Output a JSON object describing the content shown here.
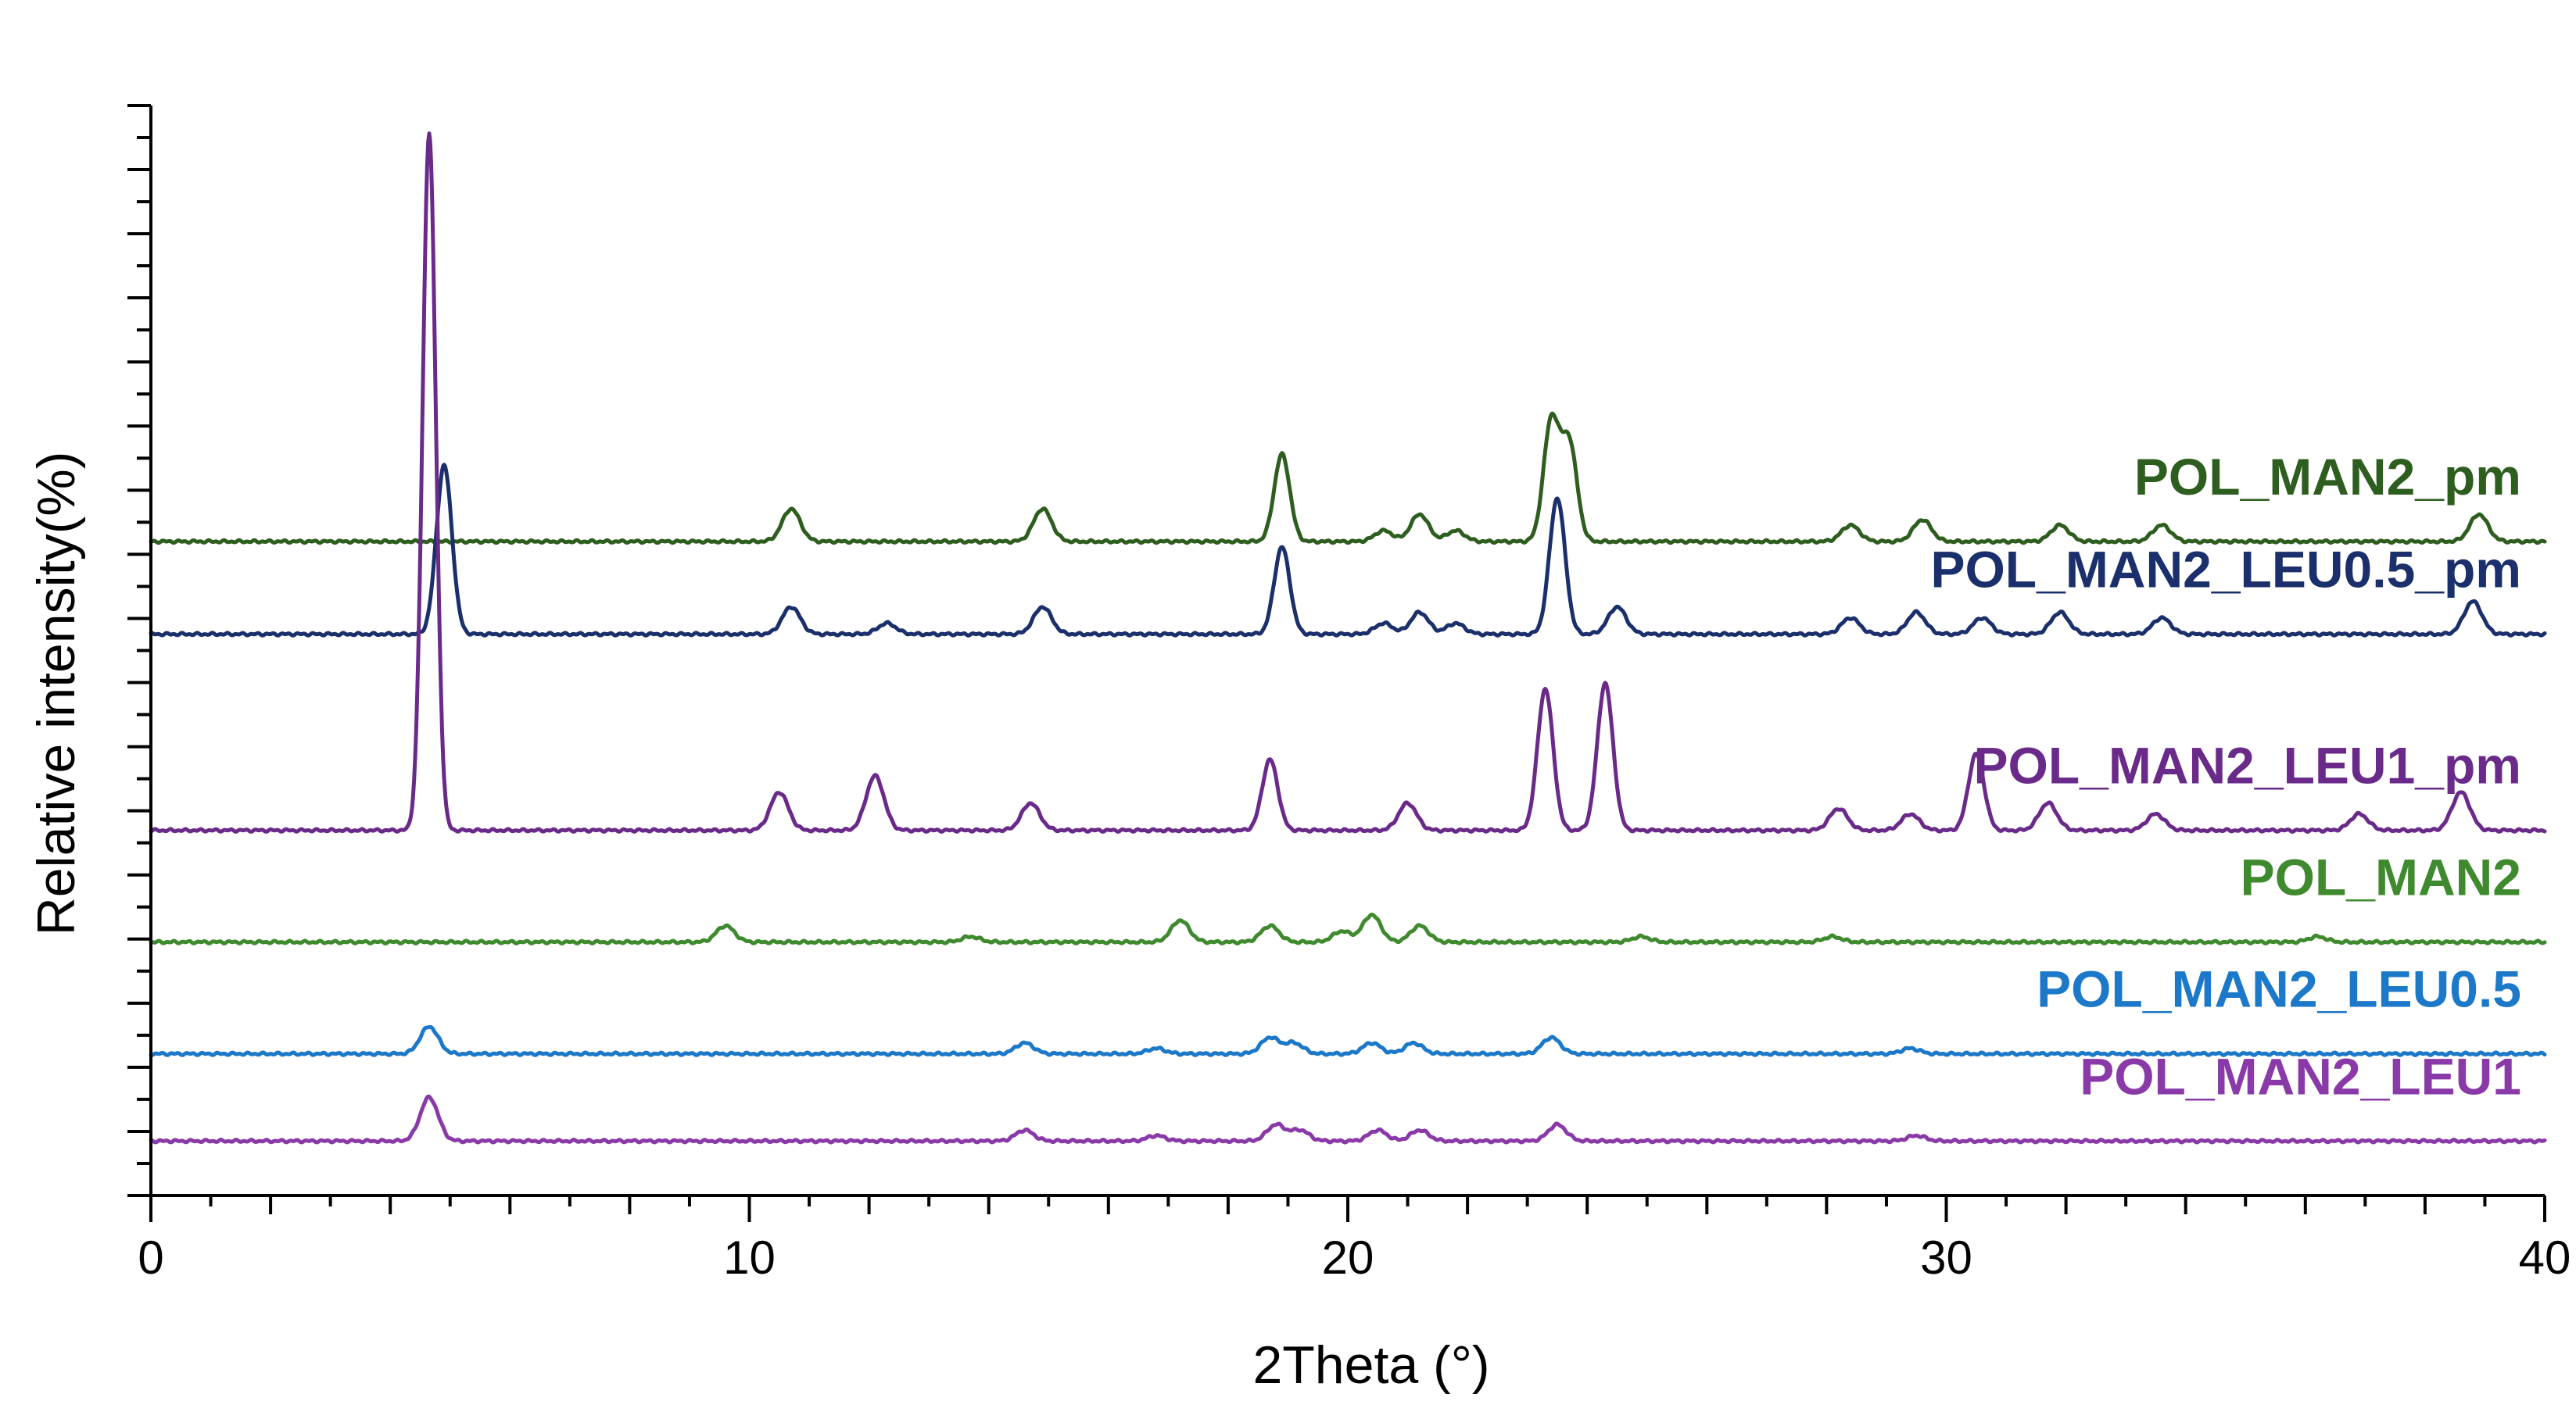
{
  "chart_data": {
    "type": "line",
    "title": "",
    "xlabel": "2Theta (°)",
    "ylabel": "Relative intensity(%)",
    "xlim": [
      0,
      40
    ],
    "x_ticks": [
      0,
      10,
      20,
      30,
      40
    ],
    "x_tick_labels": [
      "0",
      "10",
      "20",
      "30",
      "40"
    ],
    "grid": false,
    "legend": "inline labels on right",
    "series": [
      {
        "name": "POL_MAN2_pm",
        "color": "#2e5e1f",
        "offset": 90,
        "peaks": [
          [
            10.7,
            6
          ],
          [
            14.9,
            6
          ],
          [
            18.9,
            16
          ],
          [
            20.6,
            2
          ],
          [
            21.2,
            5
          ],
          [
            21.8,
            2
          ],
          [
            23.4,
            22
          ],
          [
            23.7,
            18
          ],
          [
            28.4,
            3
          ],
          [
            29.6,
            4
          ],
          [
            31.9,
            3
          ],
          [
            33.6,
            3
          ],
          [
            38.9,
            5
          ]
        ]
      },
      {
        "name": "POL_MAN2_LEU0.5_pm",
        "color": "#1a2f6b",
        "offset": 73,
        "peaks": [
          [
            4.9,
            31
          ],
          [
            10.7,
            5
          ],
          [
            12.3,
            2
          ],
          [
            14.9,
            5
          ],
          [
            18.9,
            16
          ],
          [
            20.6,
            2
          ],
          [
            21.2,
            4
          ],
          [
            21.8,
            2
          ],
          [
            23.5,
            25
          ],
          [
            24.5,
            5
          ],
          [
            28.4,
            3
          ],
          [
            29.5,
            4
          ],
          [
            30.6,
            3
          ],
          [
            31.9,
            4
          ],
          [
            33.6,
            3
          ],
          [
            38.8,
            6
          ]
        ]
      },
      {
        "name": "POL_MAN2_LEU1_pm",
        "color": "#6a2a8a",
        "offset": 37,
        "peaks": [
          [
            4.65,
            128
          ],
          [
            10.5,
            7
          ],
          [
            12.1,
            10
          ],
          [
            14.7,
            5
          ],
          [
            18.7,
            13
          ],
          [
            21.0,
            5
          ],
          [
            23.3,
            26
          ],
          [
            24.3,
            27
          ],
          [
            28.2,
            4
          ],
          [
            29.4,
            3
          ],
          [
            30.5,
            14
          ],
          [
            31.7,
            5
          ],
          [
            33.5,
            3
          ],
          [
            36.9,
            3
          ],
          [
            38.6,
            7
          ]
        ]
      },
      {
        "name": "POL_MAN2",
        "color": "#3f8a2e",
        "offset": 16.5,
        "peaks": [
          [
            9.6,
            3
          ],
          [
            13.7,
            1
          ],
          [
            17.2,
            4
          ],
          [
            18.7,
            3
          ],
          [
            19.9,
            2
          ],
          [
            20.4,
            5
          ],
          [
            21.2,
            3
          ],
          [
            24.9,
            1
          ],
          [
            28.1,
            1
          ],
          [
            36.2,
            1
          ]
        ]
      },
      {
        "name": "POL_MAN2_LEU0.5",
        "color": "#1c78c8",
        "offset": -4,
        "peaks": [
          [
            4.65,
            5
          ],
          [
            14.6,
            2
          ],
          [
            16.8,
            1
          ],
          [
            18.7,
            3
          ],
          [
            19.1,
            2
          ],
          [
            20.4,
            2
          ],
          [
            21.1,
            2
          ],
          [
            23.4,
            3
          ],
          [
            29.4,
            1
          ]
        ]
      },
      {
        "name": "POL_MAN2_LEU1",
        "color": "#8a3aa8",
        "offset": -20,
        "peaks": [
          [
            4.65,
            8
          ],
          [
            14.6,
            2
          ],
          [
            16.8,
            1
          ],
          [
            18.8,
            3
          ],
          [
            19.2,
            2
          ],
          [
            20.5,
            2
          ],
          [
            21.2,
            2
          ],
          [
            23.5,
            3
          ],
          [
            29.5,
            1
          ]
        ]
      }
    ]
  }
}
